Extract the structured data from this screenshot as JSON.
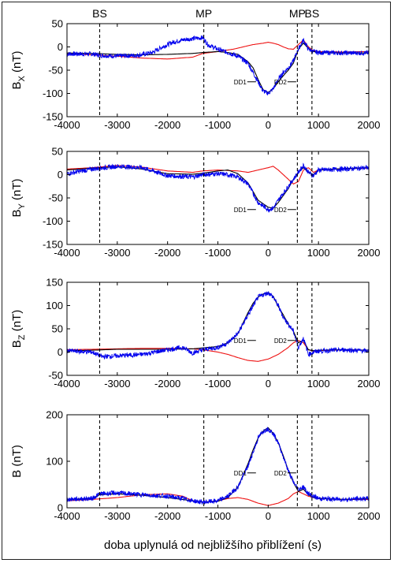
{
  "figure": {
    "xlabel": "doba uplynulá od nejbližšího přiblížení (s)"
  },
  "markers": [
    {
      "label": "BS",
      "x": -3350,
      "label_shown": true
    },
    {
      "label": "MP",
      "x": -1280,
      "label_shown": true
    },
    {
      "label": "MP",
      "x": 580,
      "label_shown": true
    },
    {
      "label": "BS",
      "x": 870,
      "label_shown": true
    }
  ],
  "colors": {
    "blue": "#0000ee",
    "red": "#ee1111",
    "black": "#000000"
  },
  "chart_data": [
    {
      "type": "line",
      "ylabel": "B_X (nT)",
      "ylabel_main": "B",
      "ylabel_sub": "X",
      "ylabel_unit": "(nT)",
      "xlim": [
        -4000,
        2000
      ],
      "ylim": [
        -150,
        50
      ],
      "xticks": [
        "-4000",
        "-3000",
        "-2000",
        "-1000",
        "0",
        "1000",
        "2000"
      ],
      "yticks": [
        "50",
        "0",
        "-50",
        "-100",
        "-150"
      ],
      "annotations": [
        {
          "text": "DD1",
          "x": -400,
          "y": -75
        },
        {
          "text": "DD2",
          "x": 400,
          "y": -75
        }
      ],
      "series": [
        {
          "color": "blue",
          "noise": 5,
          "x": [
            -4000,
            -3500,
            -3350,
            -3000,
            -2600,
            -2300,
            -2100,
            -1900,
            -1700,
            -1500,
            -1300,
            -1200,
            -1000,
            -800,
            -600,
            -400,
            -200,
            -100,
            0,
            100,
            200,
            300,
            400,
            500,
            600,
            700,
            800,
            900,
            1000,
            1500,
            2000
          ],
          "y": [
            -15,
            -15,
            -18,
            -20,
            -18,
            -12,
            0,
            10,
            15,
            18,
            20,
            5,
            -5,
            -12,
            -20,
            -35,
            -75,
            -95,
            -100,
            -90,
            -70,
            -55,
            -45,
            -30,
            -5,
            15,
            -5,
            -10,
            -12,
            -13,
            -13
          ]
        },
        {
          "color": "black",
          "noise": 0,
          "x": [
            -4000,
            -3500,
            -3000,
            -2500,
            -2000,
            -1500,
            -1300,
            -1000,
            -800,
            -600,
            -400,
            -300,
            -200,
            -100,
            0,
            100,
            200,
            300,
            400,
            500,
            600,
            700,
            800,
            900,
            1000,
            1500,
            2000
          ],
          "y": [
            -13,
            -14,
            -16,
            -17,
            -16,
            -14,
            -12,
            -10,
            -12,
            -16,
            -32,
            -45,
            -70,
            -92,
            -98,
            -90,
            -75,
            -62,
            -50,
            -35,
            -5,
            8,
            -3,
            -10,
            -12,
            -13,
            -13
          ]
        },
        {
          "color": "red",
          "noise": 0,
          "x": [
            -4000,
            -3500,
            -3000,
            -2500,
            -2000,
            -1500,
            -1300,
            -1000,
            -700,
            -500,
            -300,
            -100,
            0,
            100,
            200,
            300,
            400,
            500,
            600,
            700,
            800,
            900,
            1000,
            1500,
            2000
          ],
          "y": [
            -15,
            -17,
            -20,
            -24,
            -26,
            -22,
            -14,
            -10,
            -5,
            0,
            5,
            8,
            10,
            8,
            5,
            0,
            -4,
            -5,
            5,
            15,
            0,
            -8,
            -10,
            -11,
            -10
          ]
        }
      ]
    },
    {
      "type": "line",
      "ylabel": "B_Y (nT)",
      "ylabel_main": "B",
      "ylabel_sub": "Y",
      "ylabel_unit": "(nT)",
      "xlim": [
        -4000,
        2000
      ],
      "ylim": [
        -150,
        50
      ],
      "xticks": [
        "-4000",
        "-3000",
        "-2000",
        "-1000",
        "0",
        "1000",
        "2000"
      ],
      "yticks": [
        "50",
        "0",
        "-50",
        "-100",
        "-150"
      ],
      "annotations": [
        {
          "text": "DD1",
          "x": -400,
          "y": -75
        },
        {
          "text": "DD2",
          "x": 400,
          "y": -75
        }
      ],
      "series": [
        {
          "color": "blue",
          "noise": 5,
          "x": [
            -4000,
            -3500,
            -3000,
            -2500,
            -2000,
            -1500,
            -1300,
            -1000,
            -800,
            -600,
            -400,
            -200,
            0,
            100,
            200,
            300,
            400,
            500,
            600,
            700,
            800,
            900,
            1000,
            1500,
            2000
          ],
          "y": [
            2,
            12,
            18,
            15,
            -2,
            -5,
            0,
            2,
            0,
            -5,
            -20,
            -60,
            -75,
            -72,
            -55,
            -40,
            -25,
            -10,
            5,
            20,
            5,
            -2,
            10,
            12,
            15
          ]
        },
        {
          "color": "black",
          "noise": 0,
          "x": [
            -4000,
            -3500,
            -3000,
            -2500,
            -2000,
            -1500,
            -1300,
            -1000,
            -800,
            -600,
            -400,
            -200,
            0,
            100,
            200,
            300,
            400,
            500,
            600,
            700,
            800,
            900,
            1000,
            1500,
            2000
          ],
          "y": [
            10,
            14,
            17,
            12,
            2,
            1,
            3,
            8,
            10,
            2,
            -18,
            -55,
            -70,
            -72,
            -60,
            -45,
            -30,
            -10,
            5,
            15,
            5,
            0,
            10,
            13,
            15
          ]
        },
        {
          "color": "red",
          "noise": 0,
          "x": [
            -4000,
            -3500,
            -3000,
            -2500,
            -2000,
            -1500,
            -1300,
            -1000,
            -600,
            -400,
            -200,
            0,
            100,
            200,
            300,
            400,
            500,
            600,
            700,
            800,
            900,
            1000,
            1500,
            2000
          ],
          "y": [
            12,
            15,
            20,
            16,
            8,
            5,
            8,
            10,
            8,
            5,
            10,
            15,
            18,
            10,
            0,
            -10,
            -20,
            -15,
            10,
            15,
            5,
            10,
            13,
            14
          ]
        }
      ]
    },
    {
      "type": "line",
      "ylabel": "B_Z (nT)",
      "ylabel_main": "B",
      "ylabel_sub": "Z",
      "ylabel_unit": "(nT)",
      "xlim": [
        -4000,
        2000
      ],
      "ylim": [
        -50,
        150
      ],
      "xticks": [
        "-4000",
        "-3000",
        "-2000",
        "-1000",
        "0",
        "1000",
        "2000"
      ],
      "yticks": [
        "150",
        "100",
        "50",
        "0",
        "-50"
      ],
      "annotations": [
        {
          "text": "DD1",
          "x": -400,
          "y": 25
        },
        {
          "text": "DD2",
          "x": 400,
          "y": 25
        }
      ],
      "series": [
        {
          "color": "blue",
          "noise": 5,
          "x": [
            -4000,
            -3500,
            -3300,
            -3000,
            -2500,
            -2000,
            -1700,
            -1500,
            -1300,
            -1000,
            -800,
            -600,
            -400,
            -200,
            0,
            100,
            200,
            300,
            400,
            500,
            600,
            700,
            800,
            900,
            1000,
            1500,
            2000
          ],
          "y": [
            3,
            0,
            -10,
            -8,
            -5,
            5,
            10,
            -2,
            5,
            10,
            20,
            40,
            80,
            118,
            128,
            118,
            100,
            75,
            60,
            45,
            10,
            30,
            -5,
            0,
            2,
            5,
            2
          ]
        },
        {
          "color": "black",
          "noise": 0,
          "x": [
            -4000,
            -3500,
            -3000,
            -2500,
            -2000,
            -1500,
            -1300,
            -1000,
            -800,
            -600,
            -400,
            -300,
            -200,
            -100,
            0,
            100,
            200,
            300,
            400,
            500,
            600,
            700,
            800,
            900,
            1000,
            1500,
            2000
          ],
          "y": [
            3,
            4,
            6,
            6,
            6,
            7,
            9,
            12,
            20,
            40,
            85,
            105,
            118,
            125,
            128,
            120,
            98,
            80,
            60,
            45,
            20,
            25,
            5,
            3,
            4,
            5,
            4
          ]
        },
        {
          "color": "red",
          "noise": 0,
          "x": [
            -4000,
            -3500,
            -3000,
            -2500,
            -2000,
            -1500,
            -1300,
            -1000,
            -800,
            -600,
            -400,
            -200,
            0,
            200,
            400,
            500,
            600,
            700,
            800,
            900,
            1000,
            1500,
            2000
          ],
          "y": [
            5,
            6,
            7,
            8,
            8,
            7,
            5,
            0,
            -5,
            -12,
            -18,
            -20,
            -15,
            -5,
            10,
            20,
            25,
            20,
            5,
            2,
            3,
            5,
            4
          ]
        }
      ]
    },
    {
      "type": "line",
      "ylabel": "B (nT)",
      "ylabel_main": "B",
      "ylabel_sub": "",
      "ylabel_unit": "(nT)",
      "xlim": [
        -4000,
        2000
      ],
      "ylim": [
        0,
        200
      ],
      "xticks": [
        "-4000",
        "-3000",
        "-2000",
        "-1000",
        "0",
        "1000",
        "2000"
      ],
      "yticks": [
        "200",
        "100",
        "0"
      ],
      "annotations": [
        {
          "text": "DD1",
          "x": -400,
          "y": 75
        },
        {
          "text": "DD2",
          "x": 400,
          "y": 75
        }
      ],
      "series": [
        {
          "color": "blue",
          "noise": 5,
          "x": [
            -4000,
            -3500,
            -3350,
            -3000,
            -2500,
            -2000,
            -1700,
            -1500,
            -1300,
            -1000,
            -800,
            -600,
            -400,
            -300,
            -200,
            -100,
            0,
            100,
            200,
            300,
            400,
            500,
            600,
            700,
            800,
            900,
            1000,
            1500,
            2000
          ],
          "y": [
            18,
            20,
            30,
            32,
            28,
            25,
            20,
            15,
            12,
            15,
            25,
            45,
            90,
            120,
            150,
            165,
            170,
            160,
            140,
            110,
            80,
            55,
            40,
            45,
            30,
            25,
            20,
            18,
            20
          ]
        },
        {
          "color": "black",
          "noise": 0,
          "x": [
            -4000,
            -3500,
            -3350,
            -3000,
            -2500,
            -2000,
            -1500,
            -1300,
            -1000,
            -800,
            -600,
            -400,
            -300,
            -200,
            -100,
            0,
            100,
            200,
            300,
            400,
            500,
            600,
            700,
            800,
            900,
            1000,
            1500,
            2000
          ],
          "y": [
            18,
            20,
            28,
            30,
            27,
            22,
            15,
            12,
            14,
            22,
            45,
            95,
            125,
            150,
            165,
            172,
            160,
            140,
            112,
            80,
            55,
            35,
            40,
            28,
            22,
            20,
            18,
            20
          ]
        },
        {
          "color": "red",
          "noise": 0,
          "x": [
            -4000,
            -3500,
            -3000,
            -2500,
            -2000,
            -1700,
            -1500,
            -1300,
            -1000,
            -800,
            -600,
            -400,
            -200,
            0,
            200,
            400,
            500,
            600,
            700,
            800,
            900,
            1000,
            1500,
            2000
          ],
          "y": [
            15,
            18,
            22,
            28,
            30,
            25,
            15,
            12,
            15,
            20,
            22,
            18,
            10,
            5,
            10,
            20,
            30,
            35,
            30,
            25,
            22,
            20,
            18,
            18
          ]
        }
      ]
    }
  ]
}
